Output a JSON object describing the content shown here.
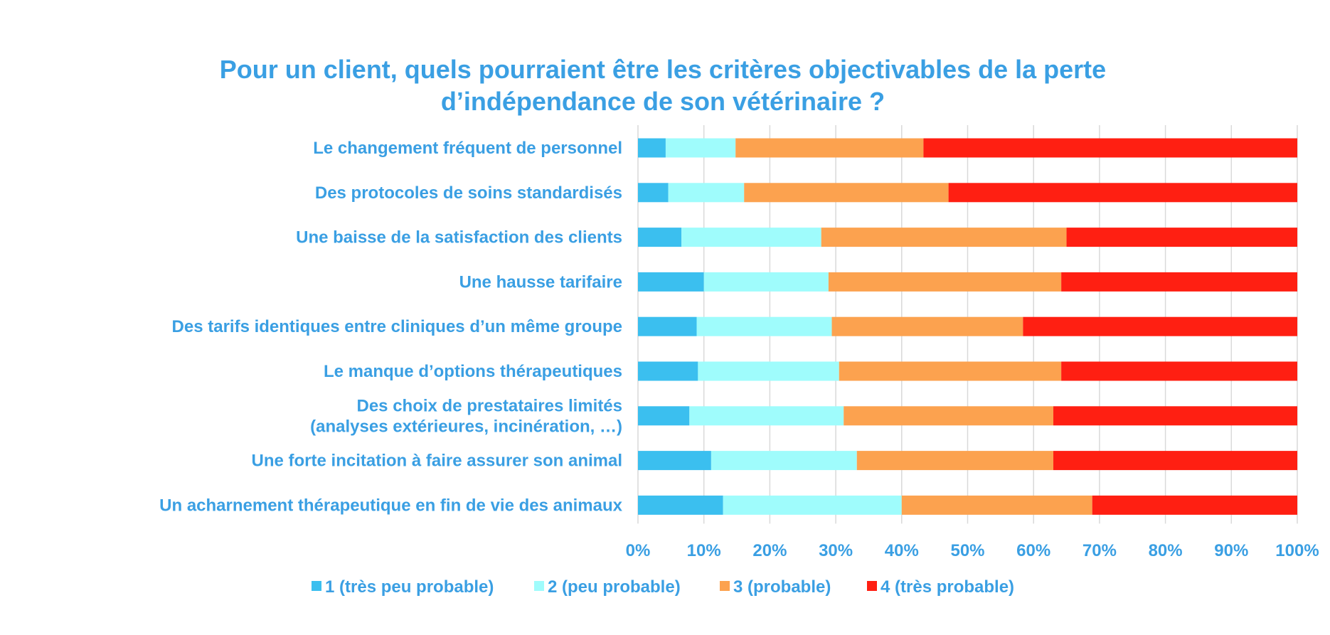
{
  "chart_data": {
    "type": "bar",
    "orientation": "horizontal",
    "stacked": "percent",
    "title": "Pour un client, quels pourraient être les critères objectivables de la perte d’indépendance de son vétérinaire ?",
    "title_lines": [
      "Pour un client, quels pourraient être les critères objectivables de la perte",
      "d’indépendance de son vétérinaire ?"
    ],
    "categories": [
      [
        "Le changement fréquent de personnel"
      ],
      [
        "Des protocoles de soins standardisés"
      ],
      [
        "Une baisse de la satisfaction des clients"
      ],
      [
        "Une hausse tarifaire"
      ],
      [
        "Des tarifs identiques entre cliniques d’un même groupe"
      ],
      [
        "Le manque d’options thérapeutiques"
      ],
      [
        "Des choix de prestataires limités",
        "(analyses extérieures, incinération, …)"
      ],
      [
        "Une forte incitation à faire assurer son animal"
      ],
      [
        "Un acharnement thérapeutique en fin de vie des animaux"
      ]
    ],
    "series": [
      {
        "name": "1 (très peu probable)",
        "color": "#3bbfef",
        "values": [
          4.2,
          4.6,
          6.6,
          10.0,
          8.9,
          9.1,
          7.8,
          11.1,
          12.9
        ]
      },
      {
        "name": "2 (peu probable)",
        "color": "#9ffcfc",
        "values": [
          10.6,
          11.5,
          21.2,
          18.9,
          20.5,
          21.4,
          23.4,
          22.1,
          27.1
        ]
      },
      {
        "name": "3 (probable)",
        "color": "#fca24f",
        "values": [
          28.5,
          31.0,
          37.2,
          35.3,
          29.0,
          33.7,
          31.8,
          29.8,
          28.9
        ]
      },
      {
        "name": "4 (très probable)",
        "color": "#ff1f12",
        "values": [
          56.7,
          52.9,
          35.0,
          35.8,
          41.6,
          35.8,
          37.0,
          37.0,
          31.1
        ]
      }
    ],
    "x_ticks": [
      "0%",
      "10%",
      "20%",
      "30%",
      "40%",
      "50%",
      "60%",
      "70%",
      "80%",
      "90%",
      "100%"
    ],
    "xlim": [
      0,
      100
    ],
    "grid": "vertical",
    "legend_position": "bottom"
  }
}
